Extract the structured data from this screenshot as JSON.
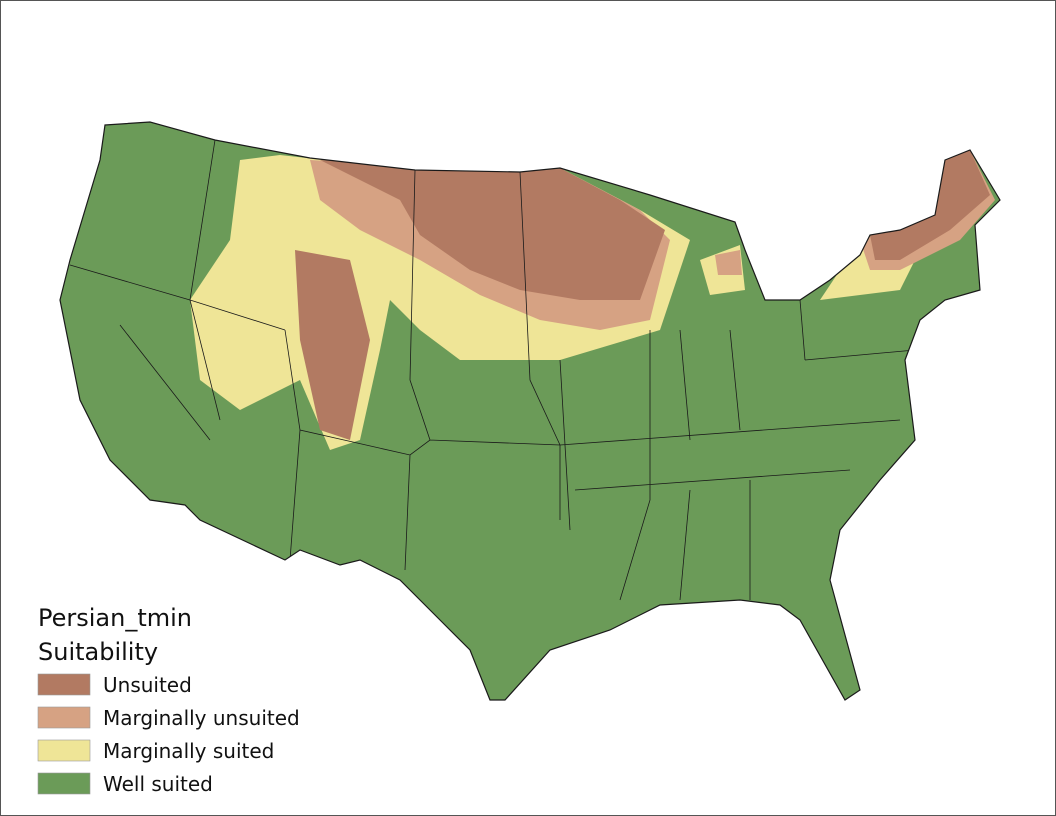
{
  "map": {
    "legend": {
      "title": [
        "Persian_tmin",
        "Suitability"
      ],
      "items": [
        {
          "label": "Unsuited",
          "color": "#b27a62"
        },
        {
          "label": "Marginally unsuited",
          "color": "#d6a283"
        },
        {
          "label": "Marginally suited",
          "color": "#efe597"
        },
        {
          "label": "Well suited",
          "color": "#6b9b58"
        }
      ]
    }
  }
}
